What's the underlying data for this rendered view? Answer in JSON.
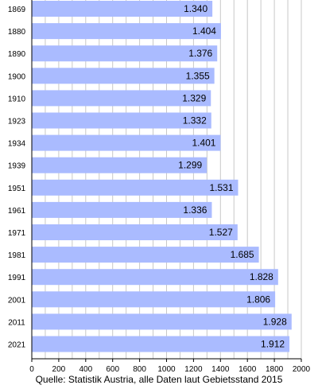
{
  "chart_data": {
    "type": "bar",
    "orientation": "horizontal",
    "categories": [
      "1869",
      "1880",
      "1890",
      "1900",
      "1910",
      "1923",
      "1934",
      "1939",
      "1951",
      "1961",
      "1971",
      "1981",
      "1991",
      "2001",
      "2011",
      "2021"
    ],
    "values": [
      1340,
      1404,
      1376,
      1355,
      1329,
      1332,
      1401,
      1299,
      1531,
      1336,
      1527,
      1685,
      1828,
      1806,
      1928,
      1912
    ],
    "value_labels": [
      "1.340",
      "1.404",
      "1.376",
      "1.355",
      "1.329",
      "1.332",
      "1.401",
      "1.299",
      "1.531",
      "1.336",
      "1.527",
      "1.685",
      "1.828",
      "1.806",
      "1.928",
      "1.912"
    ],
    "xlim": [
      0,
      2000
    ],
    "x_ticks": [
      0,
      200,
      400,
      600,
      800,
      1000,
      1200,
      1400,
      1600,
      1800,
      2000
    ],
    "x_tick_labels": [
      "0",
      "200",
      "400",
      "600",
      "800",
      "1000",
      "1200",
      "1400",
      "1600",
      "1800",
      "2000"
    ],
    "grid": "vertical",
    "bar_color": "#aabbff",
    "grid_color": "#c8c8c8",
    "source_note": "Quelle: Statistik Austria, alle Daten laut Gebietsstand 2015"
  }
}
